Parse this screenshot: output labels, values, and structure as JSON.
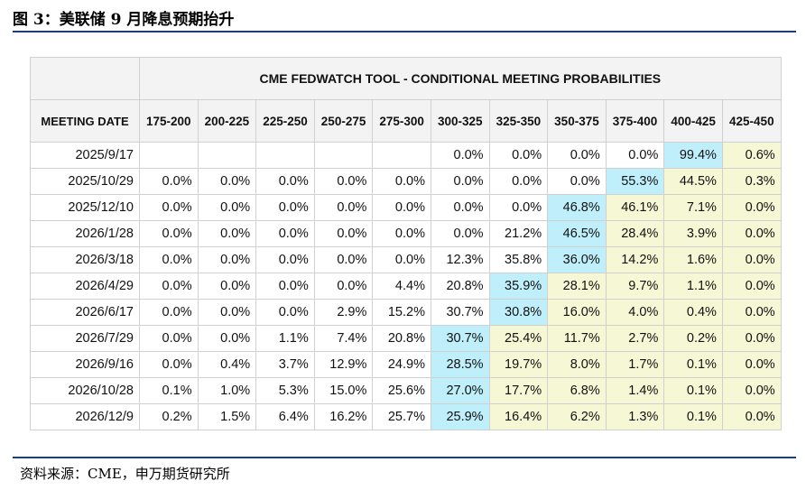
{
  "figure_title": "图 3：美联储 9 月降息预期抬升",
  "source_note": "资料来源：CME，申万期货研究所",
  "chart_data": {
    "type": "table",
    "title": "CME FEDWATCH TOOL - CONDITIONAL MEETING PROBABILITIES",
    "row_header_label": "MEETING DATE",
    "columns": [
      "175-200",
      "200-225",
      "225-250",
      "250-275",
      "275-300",
      "300-325",
      "325-350",
      "350-375",
      "375-400",
      "400-425",
      "425-450"
    ],
    "rows": [
      {
        "date": "2025/9/17",
        "values": [
          "",
          "",
          "",
          "",
          "",
          "0.0%",
          "0.0%",
          "0.0%",
          "0.0%",
          "99.4%",
          "0.6%"
        ]
      },
      {
        "date": "2025/10/29",
        "values": [
          "0.0%",
          "0.0%",
          "0.0%",
          "0.0%",
          "0.0%",
          "0.0%",
          "0.0%",
          "0.0%",
          "55.3%",
          "44.5%",
          "0.3%"
        ]
      },
      {
        "date": "2025/12/10",
        "values": [
          "0.0%",
          "0.0%",
          "0.0%",
          "0.0%",
          "0.0%",
          "0.0%",
          "0.0%",
          "46.8%",
          "46.1%",
          "7.1%",
          "0.0%"
        ]
      },
      {
        "date": "2026/1/28",
        "values": [
          "0.0%",
          "0.0%",
          "0.0%",
          "0.0%",
          "0.0%",
          "0.0%",
          "21.2%",
          "46.5%",
          "28.4%",
          "3.9%",
          "0.0%"
        ]
      },
      {
        "date": "2026/3/18",
        "values": [
          "0.0%",
          "0.0%",
          "0.0%",
          "0.0%",
          "0.0%",
          "12.3%",
          "35.8%",
          "36.0%",
          "14.2%",
          "1.6%",
          "0.0%"
        ]
      },
      {
        "date": "2026/4/29",
        "values": [
          "0.0%",
          "0.0%",
          "0.0%",
          "0.0%",
          "4.4%",
          "20.8%",
          "35.9%",
          "28.1%",
          "9.7%",
          "1.1%",
          "0.0%"
        ]
      },
      {
        "date": "2026/6/17",
        "values": [
          "0.0%",
          "0.0%",
          "0.0%",
          "2.9%",
          "15.2%",
          "30.7%",
          "30.8%",
          "16.0%",
          "4.0%",
          "0.4%",
          "0.0%"
        ]
      },
      {
        "date": "2026/7/29",
        "values": [
          "0.0%",
          "0.0%",
          "1.1%",
          "7.4%",
          "20.8%",
          "30.7%",
          "25.4%",
          "11.7%",
          "2.7%",
          "0.2%",
          "0.0%"
        ]
      },
      {
        "date": "2026/9/16",
        "values": [
          "0.0%",
          "0.4%",
          "3.7%",
          "12.9%",
          "24.9%",
          "28.5%",
          "19.7%",
          "8.0%",
          "1.7%",
          "0.1%",
          "0.0%"
        ]
      },
      {
        "date": "2026/10/28",
        "values": [
          "0.1%",
          "1.0%",
          "5.3%",
          "15.0%",
          "25.6%",
          "27.0%",
          "17.7%",
          "6.8%",
          "1.4%",
          "0.1%",
          "0.0%"
        ]
      },
      {
        "date": "2026/12/9",
        "values": [
          "0.2%",
          "1.5%",
          "6.4%",
          "16.2%",
          "25.7%",
          "25.9%",
          "16.4%",
          "6.2%",
          "1.3%",
          "0.1%",
          "0.0%"
        ]
      }
    ],
    "highlight_color": "#bfeffb",
    "tint_color": "#f6f7d4",
    "header_background": "#f3f3f3",
    "rule_color": "#1f3d7a"
  }
}
